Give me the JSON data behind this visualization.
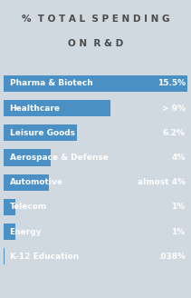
{
  "title_line1": "% TOTAL SPENDING",
  "title_line2": "ON R&D",
  "background_color": "#d0d8e0",
  "bar_color": "#4a90c4",
  "text_color": "#ffffff",
  "title_color": "#4a4a4a",
  "categories": [
    "Pharma & Biotech",
    "Healthcare",
    "Leisure Goods",
    "Aerospace & Defense",
    "Automotive",
    "Telecom",
    "Energy",
    "K-12 Education"
  ],
  "values": [
    15.5,
    9.0,
    6.2,
    4.0,
    3.8,
    1.0,
    1.0,
    0.038
  ],
  "labels": [
    "15.5%",
    "> 9%",
    "6.2%",
    "4%",
    "almost 4%",
    "1%",
    "1%",
    ".038%"
  ],
  "max_value": 15.5,
  "title_fontsize": 7.5,
  "label_fontsize": 6.5,
  "value_fontsize": 6.5
}
